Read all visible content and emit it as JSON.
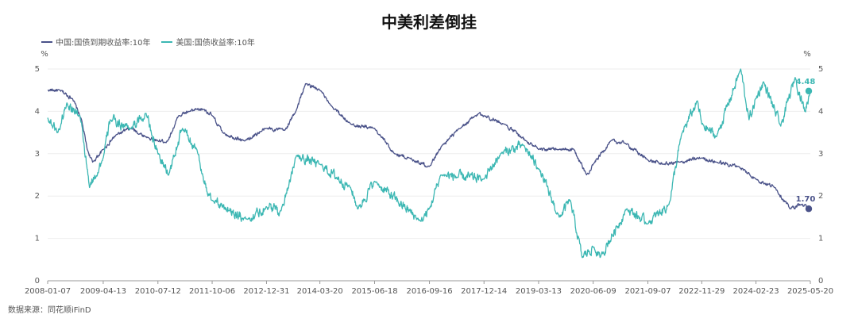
{
  "chart_data": {
    "type": "line",
    "title": "中美利差倒挂",
    "y_unit_left": "%",
    "y_unit_right": "%",
    "ylim": [
      0,
      5
    ],
    "yticks": [
      0,
      1,
      2,
      3,
      4,
      5
    ],
    "x_tick_labels": [
      "2008-01-07",
      "2009-04-13",
      "2010-07-12",
      "2011-10-06",
      "2012-12-31",
      "2014-03-20",
      "2015-06-18",
      "2016-09-16",
      "2017-12-14",
      "2019-03-13",
      "2020-06-09",
      "2021-09-07",
      "2022-11-29",
      "2024-02-23",
      "2025-05-20"
    ],
    "grid": true,
    "legend_position": "top-left",
    "series": [
      {
        "name": "中国:国债到期收益率:10年",
        "color": "#4a5289",
        "end_label": "1.70",
        "points": [
          [
            "2008-01-07",
            4.5
          ],
          [
            "2008-04-15",
            4.5
          ],
          [
            "2008-08-01",
            4.3
          ],
          [
            "2008-10-15",
            3.8
          ],
          [
            "2008-12-01",
            3.1
          ],
          [
            "2009-01-15",
            2.8
          ],
          [
            "2009-04-13",
            3.1
          ],
          [
            "2009-08-01",
            3.45
          ],
          [
            "2009-12-01",
            3.6
          ],
          [
            "2010-04-01",
            3.4
          ],
          [
            "2010-07-12",
            3.3
          ],
          [
            "2010-10-01",
            3.3
          ],
          [
            "2011-01-01",
            3.9
          ],
          [
            "2011-04-01",
            4.0
          ],
          [
            "2011-08-01",
            4.05
          ],
          [
            "2011-10-06",
            3.9
          ],
          [
            "2012-01-01",
            3.5
          ],
          [
            "2012-07-01",
            3.3
          ],
          [
            "2012-12-31",
            3.6
          ],
          [
            "2013-06-01",
            3.55
          ],
          [
            "2013-09-01",
            4.0
          ],
          [
            "2013-11-20",
            4.65
          ],
          [
            "2014-03-20",
            4.5
          ],
          [
            "2014-06-01",
            4.2
          ],
          [
            "2014-12-01",
            3.7
          ],
          [
            "2015-06-18",
            3.6
          ],
          [
            "2015-12-01",
            3.0
          ],
          [
            "2016-04-01",
            2.9
          ],
          [
            "2016-09-16",
            2.7
          ],
          [
            "2017-01-01",
            3.2
          ],
          [
            "2017-06-01",
            3.6
          ],
          [
            "2017-11-01",
            3.95
          ],
          [
            "2017-12-14",
            3.9
          ],
          [
            "2018-06-01",
            3.7
          ],
          [
            "2018-12-01",
            3.3
          ],
          [
            "2019-03-13",
            3.1
          ],
          [
            "2019-09-01",
            3.1
          ],
          [
            "2020-01-01",
            3.1
          ],
          [
            "2020-04-15",
            2.5
          ],
          [
            "2020-06-09",
            2.75
          ],
          [
            "2020-11-01",
            3.3
          ],
          [
            "2021-03-01",
            3.25
          ],
          [
            "2021-09-07",
            2.85
          ],
          [
            "2022-01-15",
            2.75
          ],
          [
            "2022-06-01",
            2.8
          ],
          [
            "2022-11-29",
            2.9
          ],
          [
            "2023-04-01",
            2.8
          ],
          [
            "2023-10-01",
            2.7
          ],
          [
            "2024-02-23",
            2.4
          ],
          [
            "2024-08-01",
            2.2
          ],
          [
            "2024-12-01",
            1.7
          ],
          [
            "2025-03-01",
            1.8
          ],
          [
            "2025-05-20",
            1.7
          ]
        ]
      },
      {
        "name": "美国:国债收益率:10年",
        "color": "#3cb7b3",
        "end_label": "4.48",
        "points": [
          [
            "2008-01-07",
            3.85
          ],
          [
            "2008-04-01",
            3.5
          ],
          [
            "2008-06-15",
            4.2
          ],
          [
            "2008-10-01",
            3.9
          ],
          [
            "2008-12-20",
            2.2
          ],
          [
            "2009-04-13",
            2.9
          ],
          [
            "2009-06-10",
            3.8
          ],
          [
            "2009-12-01",
            3.6
          ],
          [
            "2010-04-05",
            3.95
          ],
          [
            "2010-07-12",
            3.0
          ],
          [
            "2010-10-10",
            2.5
          ],
          [
            "2011-02-01",
            3.6
          ],
          [
            "2011-06-01",
            3.1
          ],
          [
            "2011-09-01",
            2.0
          ],
          [
            "2011-10-06",
            1.9
          ],
          [
            "2012-07-24",
            1.45
          ],
          [
            "2012-12-31",
            1.75
          ],
          [
            "2013-05-01",
            1.65
          ],
          [
            "2013-09-05",
            2.95
          ],
          [
            "2014-03-20",
            2.75
          ],
          [
            "2014-12-01",
            2.2
          ],
          [
            "2015-02-01",
            1.7
          ],
          [
            "2015-06-18",
            2.35
          ],
          [
            "2016-07-08",
            1.4
          ],
          [
            "2016-09-16",
            1.7
          ],
          [
            "2016-12-20",
            2.5
          ],
          [
            "2017-12-14",
            2.4
          ],
          [
            "2018-05-01",
            3.0
          ],
          [
            "2018-11-08",
            3.2
          ],
          [
            "2019-03-13",
            2.65
          ],
          [
            "2019-09-01",
            1.5
          ],
          [
            "2019-12-01",
            1.9
          ],
          [
            "2020-03-09",
            0.55
          ],
          [
            "2020-06-09",
            0.8
          ],
          [
            "2020-08-05",
            0.55
          ],
          [
            "2021-03-15",
            1.7
          ],
          [
            "2021-09-07",
            1.35
          ],
          [
            "2022-03-01",
            1.8
          ],
          [
            "2022-06-14",
            3.45
          ],
          [
            "2022-10-24",
            4.25
          ],
          [
            "2022-11-29",
            3.7
          ],
          [
            "2023-04-01",
            3.4
          ],
          [
            "2023-10-19",
            5.0
          ],
          [
            "2023-12-27",
            3.8
          ],
          [
            "2024-02-23",
            4.3
          ],
          [
            "2024-04-25",
            4.7
          ],
          [
            "2024-09-16",
            3.65
          ],
          [
            "2025-01-14",
            4.8
          ],
          [
            "2025-04-04",
            4.0
          ],
          [
            "2025-05-20",
            4.48
          ]
        ]
      }
    ]
  },
  "source": "数据来源：同花顺iFinD"
}
